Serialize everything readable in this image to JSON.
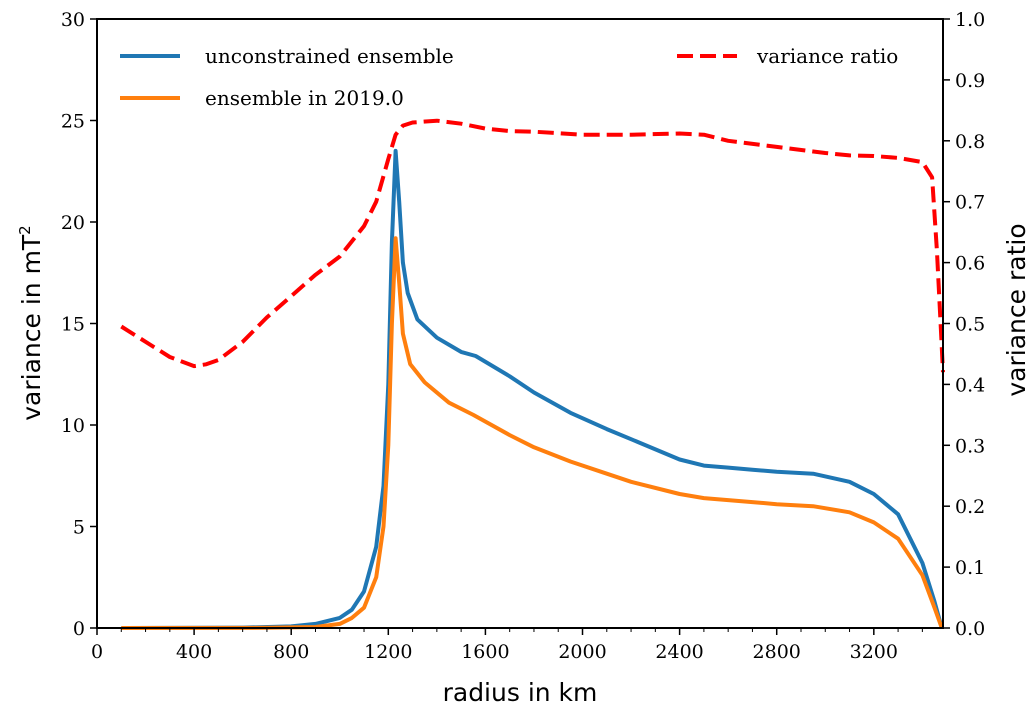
{
  "chart_data": {
    "type": "line",
    "xlabel": "radius in km",
    "ylabel": "variance in mT",
    "ylabel_superscript": "2",
    "y2label": "variance ratio",
    "xlim": [
      0,
      3485
    ],
    "ylim": [
      0,
      30
    ],
    "y2lim": [
      0,
      1.0
    ],
    "xticks": [
      "0",
      "400",
      "800",
      "1200",
      "1600",
      "2000",
      "2400",
      "2800",
      "3200"
    ],
    "yticks": [
      "0",
      "5",
      "10",
      "15",
      "20",
      "25",
      "30"
    ],
    "y2ticks": [
      "0.0",
      "0.1",
      "0.2",
      "0.3",
      "0.4",
      "0.5",
      "0.6",
      "0.7",
      "0.8",
      "0.9",
      "1.0"
    ],
    "grid": false,
    "legend": [
      {
        "label": "unconstrained ensemble",
        "color": "#1f77b4",
        "style": "solid",
        "placement": "top-left"
      },
      {
        "label": "ensemble in 2019.0",
        "color": "#ff7f0e",
        "style": "solid",
        "placement": "top-left"
      },
      {
        "label": "variance ratio",
        "color": "#ff0000",
        "style": "dashed",
        "placement": "top-right"
      }
    ],
    "series": [
      {
        "name": "unconstrained ensemble",
        "axis": "left",
        "color": "#1f77b4",
        "points": [
          [
            100,
            0
          ],
          [
            600,
            0.02
          ],
          [
            800,
            0.08
          ],
          [
            900,
            0.2
          ],
          [
            1000,
            0.5
          ],
          [
            1050,
            0.9
          ],
          [
            1100,
            1.8
          ],
          [
            1150,
            4
          ],
          [
            1180,
            7
          ],
          [
            1200,
            12
          ],
          [
            1215,
            19
          ],
          [
            1230,
            23.5
          ],
          [
            1245,
            21
          ],
          [
            1260,
            18
          ],
          [
            1280,
            16.5
          ],
          [
            1320,
            15.2
          ],
          [
            1400,
            14.3
          ],
          [
            1500,
            13.6
          ],
          [
            1560,
            13.4
          ],
          [
            1700,
            12.4
          ],
          [
            1800,
            11.6
          ],
          [
            1950,
            10.6
          ],
          [
            2100,
            9.8
          ],
          [
            2200,
            9.3
          ],
          [
            2400,
            8.3
          ],
          [
            2500,
            8.0
          ],
          [
            2600,
            7.9
          ],
          [
            2700,
            7.8
          ],
          [
            2800,
            7.7
          ],
          [
            2950,
            7.6
          ],
          [
            3100,
            7.2
          ],
          [
            3200,
            6.6
          ],
          [
            3300,
            5.6
          ],
          [
            3400,
            3.2
          ],
          [
            3450,
            1.3
          ],
          [
            3480,
            0
          ]
        ]
      },
      {
        "name": "ensemble in 2019.0",
        "axis": "left",
        "color": "#ff7f0e",
        "points": [
          [
            100,
            0
          ],
          [
            700,
            0.01
          ],
          [
            900,
            0.05
          ],
          [
            1000,
            0.2
          ],
          [
            1050,
            0.5
          ],
          [
            1100,
            1
          ],
          [
            1150,
            2.5
          ],
          [
            1180,
            5
          ],
          [
            1200,
            9
          ],
          [
            1215,
            15
          ],
          [
            1230,
            19.2
          ],
          [
            1245,
            17
          ],
          [
            1260,
            14.5
          ],
          [
            1290,
            13
          ],
          [
            1350,
            12.1
          ],
          [
            1450,
            11.1
          ],
          [
            1550,
            10.5
          ],
          [
            1700,
            9.5
          ],
          [
            1800,
            8.9
          ],
          [
            1950,
            8.2
          ],
          [
            2100,
            7.6
          ],
          [
            2200,
            7.2
          ],
          [
            2400,
            6.6
          ],
          [
            2500,
            6.4
          ],
          [
            2600,
            6.3
          ],
          [
            2700,
            6.2
          ],
          [
            2800,
            6.1
          ],
          [
            2950,
            6.0
          ],
          [
            3100,
            5.7
          ],
          [
            3200,
            5.2
          ],
          [
            3300,
            4.4
          ],
          [
            3400,
            2.6
          ],
          [
            3450,
            1.0
          ],
          [
            3480,
            0
          ]
        ]
      },
      {
        "name": "variance ratio",
        "axis": "right",
        "color": "#ff0000",
        "points": [
          [
            100,
            0.495
          ],
          [
            200,
            0.47
          ],
          [
            300,
            0.445
          ],
          [
            400,
            0.43
          ],
          [
            450,
            0.433
          ],
          [
            500,
            0.44
          ],
          [
            600,
            0.47
          ],
          [
            700,
            0.51
          ],
          [
            800,
            0.545
          ],
          [
            900,
            0.58
          ],
          [
            1000,
            0.61
          ],
          [
            1100,
            0.66
          ],
          [
            1150,
            0.7
          ],
          [
            1200,
            0.77
          ],
          [
            1230,
            0.81
          ],
          [
            1260,
            0.825
          ],
          [
            1300,
            0.83
          ],
          [
            1400,
            0.833
          ],
          [
            1500,
            0.828
          ],
          [
            1600,
            0.82
          ],
          [
            1700,
            0.816
          ],
          [
            1800,
            0.815
          ],
          [
            2000,
            0.81
          ],
          [
            2200,
            0.81
          ],
          [
            2400,
            0.812
          ],
          [
            2500,
            0.81
          ],
          [
            2600,
            0.8
          ],
          [
            2800,
            0.79
          ],
          [
            3000,
            0.78
          ],
          [
            3100,
            0.776
          ],
          [
            3200,
            0.775
          ],
          [
            3300,
            0.772
          ],
          [
            3400,
            0.765
          ],
          [
            3440,
            0.74
          ],
          [
            3460,
            0.62
          ],
          [
            3475,
            0.5
          ],
          [
            3485,
            0.42
          ]
        ]
      }
    ]
  }
}
